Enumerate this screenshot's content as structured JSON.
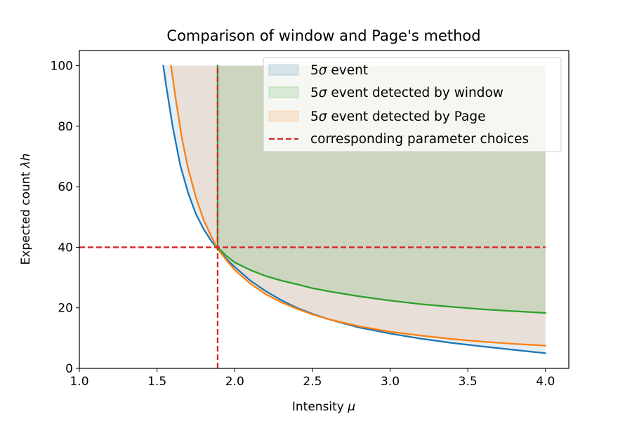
{
  "chart_data": {
    "type": "line",
    "title": "Comparison of window and Page's method",
    "xlabel": "Intensity",
    "xlabel_symbol": "μ",
    "ylabel": "Expected count",
    "ylabel_symbol": "λh",
    "xlim": [
      1.0,
      4.15
    ],
    "ylim": [
      0,
      105
    ],
    "x_ticks": [
      1.0,
      1.5,
      2.0,
      2.5,
      3.0,
      3.5,
      4.0
    ],
    "x_tick_labels": [
      "1.0",
      "1.5",
      "2.0",
      "2.5",
      "3.0",
      "3.5",
      "4.0"
    ],
    "y_ticks": [
      0,
      20,
      40,
      60,
      80,
      100
    ],
    "y_tick_labels": [
      "0",
      "20",
      "40",
      "60",
      "80",
      "100"
    ],
    "legend_position": "top-right",
    "legend": [
      {
        "label_prefix": "5",
        "label_symbol": "σ",
        "label_suffix": " event",
        "kind": "patch",
        "color": "#1f77b4"
      },
      {
        "label_prefix": "5",
        "label_symbol": "σ",
        "label_suffix": " event detected by window",
        "kind": "patch",
        "color": "#2ca02c"
      },
      {
        "label_prefix": "5",
        "label_symbol": "σ",
        "label_suffix": " event detected by Page",
        "kind": "patch",
        "color": "#ff7f0e"
      },
      {
        "label_prefix": "",
        "label_symbol": "",
        "label_suffix": "corresponding parameter choices",
        "kind": "dashed-line",
        "color": "#d62728"
      }
    ],
    "series": [
      {
        "name": "5σ event",
        "color": "#1f77b4",
        "x": [
          1.54,
          1.56,
          1.6,
          1.65,
          1.7,
          1.75,
          1.8,
          1.85,
          1.89,
          1.95,
          2.0,
          2.1,
          2.2,
          2.3,
          2.4,
          2.5,
          2.6,
          2.8,
          3.0,
          3.2,
          3.4,
          3.6,
          3.8,
          4.0
        ],
        "y": [
          100,
          93,
          80,
          67,
          58,
          51,
          46,
          42,
          39.5,
          36,
          33.5,
          29,
          25.5,
          22.5,
          20,
          18,
          16.3,
          13.5,
          11.5,
          9.8,
          8.4,
          7.2,
          6.1,
          5.0
        ]
      },
      {
        "name": "5σ event detected by Page",
        "color": "#ff7f0e",
        "x": [
          1.59,
          1.62,
          1.66,
          1.7,
          1.75,
          1.8,
          1.85,
          1.89,
          1.95,
          2.0,
          2.1,
          2.2,
          2.3,
          2.4,
          2.5,
          2.6,
          2.8,
          3.0,
          3.2,
          3.4,
          3.6,
          3.8,
          4.0
        ],
        "y": [
          100,
          89,
          76,
          66,
          56.5,
          49,
          43.5,
          39.5,
          35.5,
          32.5,
          28,
          24.5,
          21.8,
          19.7,
          17.8,
          16.3,
          13.9,
          12.1,
          10.8,
          9.7,
          8.8,
          8.1,
          7.5
        ]
      },
      {
        "name": "5σ event detected by window",
        "color": "#2ca02c",
        "x": [
          1.89,
          1.89,
          1.95,
          2.0,
          2.1,
          2.2,
          2.3,
          2.4,
          2.5,
          2.6,
          2.8,
          3.0,
          3.2,
          3.4,
          3.6,
          3.8,
          4.0
        ],
        "y": [
          100,
          40,
          37,
          35,
          32.5,
          30.5,
          29,
          27.8,
          26.5,
          25.5,
          23.8,
          22.4,
          21.2,
          20.3,
          19.5,
          18.9,
          18.3
        ]
      }
    ],
    "reference_lines": {
      "color": "#d62728",
      "x": 1.89,
      "y": 40
    },
    "fill_bounds": {
      "x_max": 4.0,
      "y_max": 100
    }
  }
}
